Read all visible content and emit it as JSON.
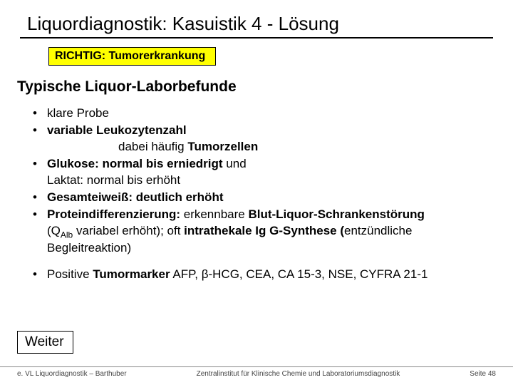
{
  "title": "Liquordiagnostik: Kasuistik 4 - Lösung",
  "answer_box": "RICHTIG: Tumorerkrankung",
  "section_heading": "Typische Liquor-Laborbefunde",
  "bullets": {
    "b1": "klare Probe",
    "b2": "variable Leukozytenzahl",
    "b2_sub_pre": "dabei häufig ",
    "b2_sub_bold": "Tumorzellen",
    "b3_bold": "Glukose: normal bis erniedrigt",
    "b3_rest": " und",
    "b3_line2": "Laktat: normal bis erhöht",
    "b4": "Gesamteiweiß: deutlich erhöht",
    "b5_bold1": "Proteindifferenzierung:",
    "b5_mid1": "  erkennbare ",
    "b5_bold2": "Blut-Liquor-Schrankenstörung",
    "b5_line2_pre": "(Q",
    "b5_line2_sub": "Alb",
    "b5_line2_mid": " variabel erhöht); oft ",
    "b5_line2_bold": "intrathekale Ig G-Synthese (",
    "b5_line2_rest": "entzündliche",
    "b5_line3": "Begleitreaktion)",
    "b6_pre": "Positive ",
    "b6_bold": "Tumormarker",
    "b6_rest": " AFP, β-HCG, CEA, CA 15-3, NSE, CYFRA 21-1"
  },
  "weiter": "Weiter",
  "footer": {
    "left": "e. VL Liquordiagnostik – Barthuber",
    "center": "Zentralinstitut für Klinische Chemie und Laboratoriumsdiagnostik",
    "right": "Seite 48"
  },
  "colors": {
    "highlight_bg": "#ffff00",
    "text": "#000000",
    "bg": "#ffffff",
    "rule": "#000000",
    "footer_rule": "#888888",
    "footer_text": "#444444"
  }
}
